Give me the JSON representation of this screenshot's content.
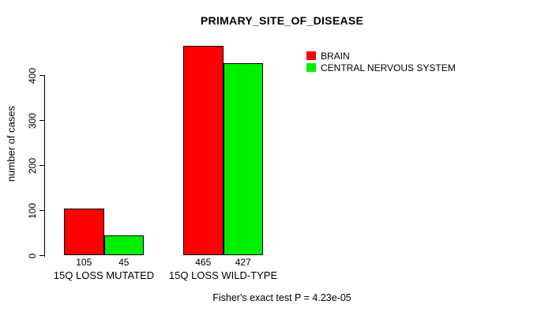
{
  "chart_data": {
    "type": "bar",
    "title": "PRIMARY_SITE_OF_DISEASE",
    "xlabel": "",
    "ylabel": "number of cases",
    "ylim": [
      0,
      470
    ],
    "yticks": [
      0,
      100,
      200,
      300,
      400
    ],
    "grid": false,
    "legend_position": "top-right",
    "categories": [
      "15Q LOSS MUTATED",
      "15Q LOSS WILD-TYPE"
    ],
    "series": [
      {
        "name": "BRAIN",
        "color": "#ff0000",
        "values": [
          105,
          465
        ]
      },
      {
        "name": "CENTRAL NERVOUS SYSTEM",
        "color": "#00ee00",
        "values": [
          45,
          427
        ]
      }
    ],
    "bar_value_labels": [
      [
        105,
        45
      ],
      [
        465,
        427
      ]
    ],
    "annotation": "Fisher's exact test P = 4.23e-05"
  },
  "colors": {
    "background": "#ffffff",
    "axis": "#000000",
    "text": "#000000",
    "bar_border": "#000000"
  }
}
